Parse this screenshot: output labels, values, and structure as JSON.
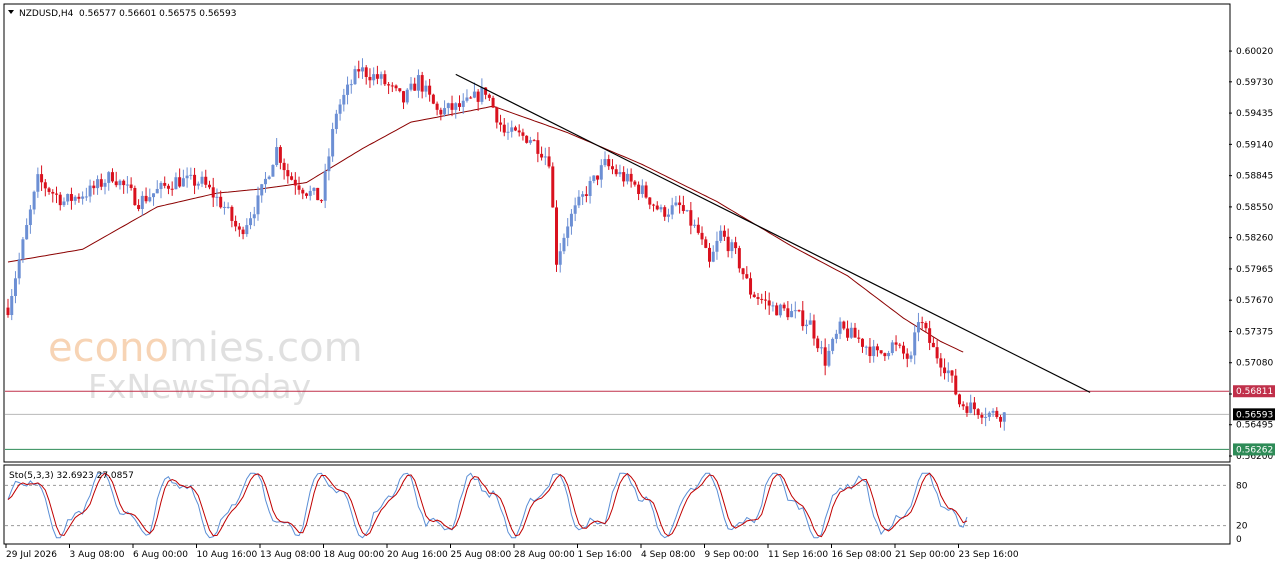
{
  "header": {
    "symbol": "NZDUSD,H4",
    "ohlc": "0.56577 0.56601 0.56575 0.56593"
  },
  "watermark": {
    "brand_accent": "econo",
    "brand_rest": "mies.com",
    "sub": "FxNewsToday"
  },
  "colors": {
    "bull": "#6c8fd4",
    "bear": "#d9111e",
    "ma": "#8b0000",
    "trendline": "#000000",
    "resistance": "#c0304a",
    "support": "#2e8b57",
    "stoch_main": "#5b8fd6",
    "stoch_signal": "#c00000",
    "accent": "#f2b27a"
  },
  "price_axis": {
    "ticks": [
      "0.60020",
      "0.59730",
      "0.59435",
      "0.59140",
      "0.58845",
      "0.58550",
      "0.58260",
      "0.57965",
      "0.57670",
      "0.57375",
      "0.57080",
      "0.56785",
      "0.56495",
      "0.56200"
    ],
    "current_label": "0.56593",
    "resistance_label": "0.56811",
    "support_label": "0.56262"
  },
  "time_axis": [
    "29 Jul 2026",
    "3 Aug 08:00",
    "6 Aug 00:00",
    "10 Aug 16:00",
    "13 Aug 08:00",
    "18 Aug 00:00",
    "20 Aug 16:00",
    "25 Aug 08:00",
    "28 Aug 00:00",
    "1 Sep 16:00",
    "4 Sep 08:00",
    "9 Sep 00:00",
    "11 Sep 16:00",
    "16 Sep 08:00",
    "21 Sep 00:00",
    "23 Sep 16:00"
  ],
  "stochastic": {
    "label": "Sto(5,3,3) 32.6923 27.0857",
    "levels": [
      "80",
      "20",
      "0"
    ]
  },
  "chart_data": {
    "type": "candlestick",
    "symbol": "NZDUSD",
    "timeframe": "H4",
    "ylim": [
      0.562,
      0.602
    ],
    "close_path": [
      [
        0,
        0.576
      ],
      [
        3,
        0.5805
      ],
      [
        8,
        0.588
      ],
      [
        15,
        0.586
      ],
      [
        22,
        0.587
      ],
      [
        28,
        0.5885
      ],
      [
        35,
        0.586
      ],
      [
        45,
        0.588
      ],
      [
        52,
        0.5878
      ],
      [
        58,
        0.5855
      ],
      [
        62,
        0.583
      ],
      [
        67,
        0.586
      ],
      [
        72,
        0.591
      ],
      [
        75,
        0.5885
      ],
      [
        80,
        0.587
      ],
      [
        84,
        0.5862
      ],
      [
        88,
        0.5945
      ],
      [
        94,
        0.5985
      ],
      [
        100,
        0.5975
      ],
      [
        106,
        0.5955
      ],
      [
        110,
        0.5975
      ],
      [
        115,
        0.5945
      ],
      [
        122,
        0.595
      ],
      [
        128,
        0.5965
      ],
      [
        133,
        0.5925
      ],
      [
        140,
        0.592
      ],
      [
        145,
        0.59
      ],
      [
        147,
        0.5805
      ],
      [
        150,
        0.584
      ],
      [
        155,
        0.587
      ],
      [
        160,
        0.5895
      ],
      [
        166,
        0.588
      ],
      [
        170,
        0.587
      ],
      [
        175,
        0.585
      ],
      [
        180,
        0.5855
      ],
      [
        185,
        0.583
      ],
      [
        188,
        0.58
      ],
      [
        191,
        0.583
      ],
      [
        195,
        0.581
      ],
      [
        199,
        0.5775
      ],
      [
        205,
        0.576
      ],
      [
        210,
        0.5755
      ],
      [
        215,
        0.5745
      ],
      [
        219,
        0.571
      ],
      [
        223,
        0.574
      ],
      [
        228,
        0.573
      ],
      [
        233,
        0.5715
      ],
      [
        237,
        0.5725
      ],
      [
        242,
        0.571
      ],
      [
        244,
        0.575
      ],
      [
        248,
        0.572
      ],
      [
        252,
        0.57
      ],
      [
        255,
        0.567
      ],
      [
        259,
        0.5665
      ],
      [
        263,
        0.566
      ],
      [
        267,
        0.5659
      ]
    ],
    "moving_average_path": [
      [
        0,
        0.5803
      ],
      [
        20,
        0.5815
      ],
      [
        40,
        0.5855
      ],
      [
        56,
        0.5868
      ],
      [
        68,
        0.5872
      ],
      [
        80,
        0.5878
      ],
      [
        95,
        0.591
      ],
      [
        108,
        0.5935
      ],
      [
        120,
        0.5943
      ],
      [
        130,
        0.595
      ],
      [
        150,
        0.5925
      ],
      [
        170,
        0.5895
      ],
      [
        190,
        0.586
      ],
      [
        210,
        0.5818
      ],
      [
        225,
        0.579
      ],
      [
        240,
        0.575
      ],
      [
        250,
        0.5728
      ],
      [
        256,
        0.5718
      ]
    ],
    "trendline": [
      [
        120,
        0.598
      ],
      [
        290,
        0.568
      ]
    ],
    "resistance": 0.56811,
    "support": 0.56262,
    "current": 0.56593,
    "stochastic": {
      "k": 32.6923,
      "d": 27.0857,
      "levels": [
        80,
        20
      ]
    }
  }
}
